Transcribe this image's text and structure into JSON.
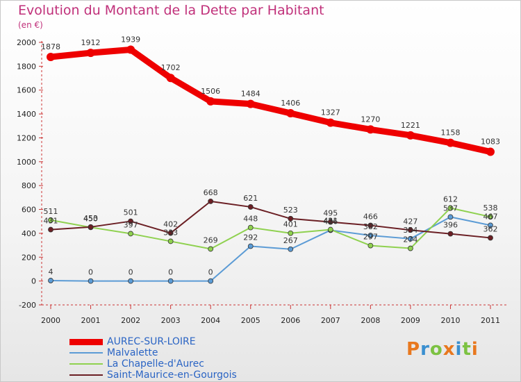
{
  "title": "Evolution du Montant de la Dette par Habitant",
  "subtitle": "(en €)",
  "logo_text": "Proxiti",
  "chart_data": {
    "type": "line",
    "x": [
      "2000",
      "2001",
      "2002",
      "2003",
      "2004",
      "2005",
      "2006",
      "2007",
      "2008",
      "2009",
      "2010",
      "2011"
    ],
    "ylim": [
      -200,
      2000
    ],
    "yticks": [
      -200,
      0,
      200,
      400,
      600,
      800,
      1000,
      1200,
      1400,
      1600,
      1800,
      2000
    ],
    "grid": false,
    "legend_position": "bottom-left",
    "series": [
      {
        "name": "AUREC-SUR-LOIRE",
        "color": "#ee0000",
        "thick": true,
        "values": [
          1878,
          1912,
          1939,
          1702,
          1506,
          1484,
          1406,
          1327,
          1270,
          1221,
          1158,
          1083
        ]
      },
      {
        "name": "Malvalette",
        "color": "#5b9bd5",
        "thick": false,
        "values": [
          4,
          0,
          0,
          0,
          0,
          292,
          267,
          426,
          382,
          354,
          537,
          467
        ]
      },
      {
        "name": "La Chapelle-d'Aurec",
        "color": "#8fd14f",
        "thick": false,
        "values": [
          511,
          450,
          397,
          333,
          269,
          448,
          401,
          431,
          297,
          274,
          612,
          538
        ]
      },
      {
        "name": "Saint-Maurice-en-Gourgois",
        "color": "#6b1f24",
        "thick": false,
        "values": [
          431,
          453,
          501,
          402,
          668,
          621,
          523,
          495,
          466,
          427,
          396,
          362
        ]
      }
    ]
  }
}
